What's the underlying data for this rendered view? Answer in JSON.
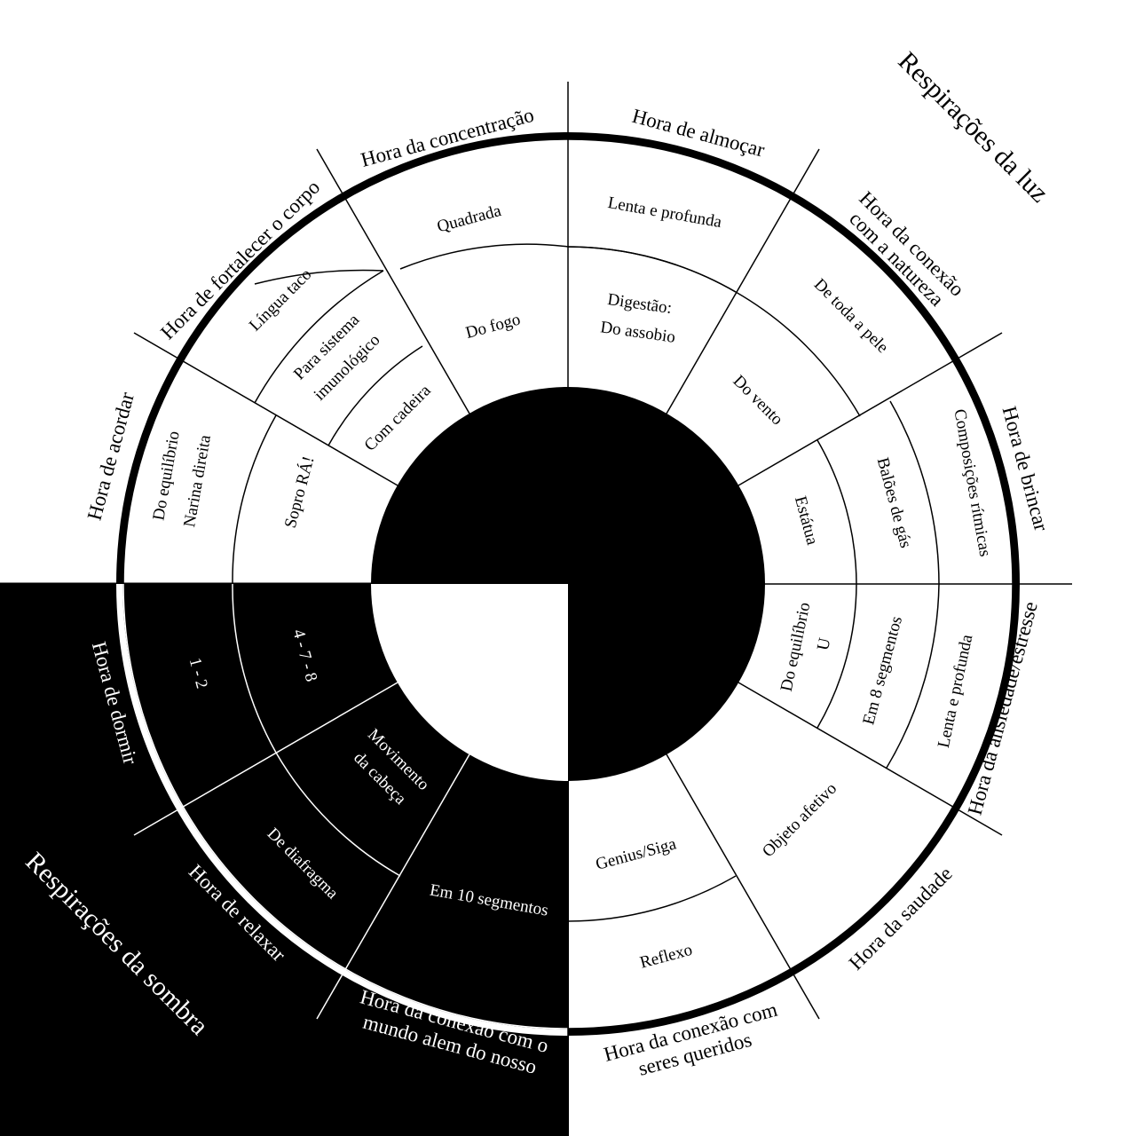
{
  "sections": {
    "light": "Respirações da luz",
    "shadow": "Respirações da sombra"
  },
  "hours": {
    "concentracao": "Hora da concentração",
    "almocar": "Hora de almoçar",
    "conexao_natureza": [
      "Hora da conexão",
      "com a natureza"
    ],
    "brincar": "Hora de brincar",
    "ansiedade": "Hora da ansiedade/estresse",
    "saudade": "Hora da saudade",
    "seres_queridos": [
      "Hora da conexão com",
      "seres queridos"
    ],
    "mundo_alem": [
      "Hora da conexão com o",
      "mundo alem do nosso"
    ],
    "relaxar": "Hora de relaxar",
    "dormir": "Hora de dormir",
    "acordar": "Hora de acordar",
    "fortalecer": "Hora de fortalecer o corpo"
  },
  "breaths": {
    "quadrada": "Quadrada",
    "do_fogo": "Do fogo",
    "lenta_profunda_1": "Lenta e profunda",
    "digestao": "Digestão:",
    "do_assobio": "Do assobio",
    "de_toda_pele": "De toda a pele",
    "do_vento": "Do vento",
    "composicoes": "Composições rítmicas",
    "baloes": "Balões de gás",
    "estatua": "Estátua",
    "do_equilibrio_u": "Do equilíbrio",
    "u": "U",
    "em_8": "Em 8 segmentos",
    "lenta_profunda_2": "Lenta e profunda",
    "objeto_afetivo": "Objeto afetivo",
    "genius": "Genius/Siga",
    "reflexo": "Reflexo",
    "em_10": "Em 10 segmentos",
    "de_diafragma": "De diafragma",
    "movimento": [
      "Movimento",
      "da cabeça"
    ],
    "um_dois": "1 - 2",
    "quatro_sete_oito": "4 - 7 - 8",
    "do_equilibrio_narina": "Do equilíbrio",
    "narina_direita": "Narina direita",
    "sopro_ra": "Sopro RÁ!",
    "lingua_taco": "Língua taco",
    "sistema_imuno": [
      "Para sistema",
      "imunológico"
    ],
    "com_cadeira": "Com cadeira"
  },
  "colors": {
    "light": "#ffffff",
    "shadow": "#000000"
  }
}
